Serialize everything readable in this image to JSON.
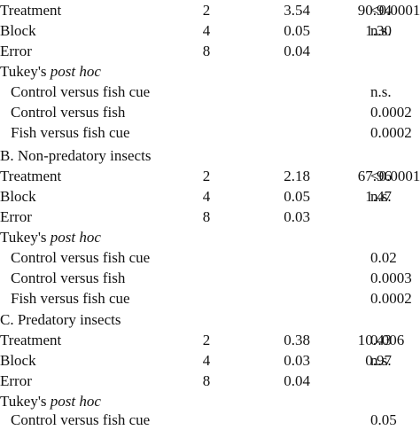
{
  "sections": [
    {
      "rows": [
        {
          "label": "Treatment",
          "df": "2",
          "ms": "3.54",
          "f": "90.94",
          "p": "<0.0001"
        },
        {
          "label": "Block",
          "df": "4",
          "ms": "0.05",
          "f": "1.30",
          "p": "n.s."
        },
        {
          "label": "Error",
          "df": "8",
          "ms": "0.04",
          "f": "",
          "p": ""
        }
      ],
      "posthoc_label": "Tukey's ",
      "posthoc_italic": "post hoc",
      "comparisons": [
        {
          "label": "Control versus fish cue",
          "p": "n.s."
        },
        {
          "label": "Control versus fish",
          "p": "0.0002"
        },
        {
          "label": "Fish versus fish cue",
          "p": "0.0002"
        }
      ]
    },
    {
      "heading": "B. Non-predatory insects",
      "rows": [
        {
          "label": "Treatment",
          "df": "2",
          "ms": "2.18",
          "f": "67.96",
          "p": "<0.0001"
        },
        {
          "label": "Block",
          "df": "4",
          "ms": "0.05",
          "f": "1.47",
          "p": "n.s."
        },
        {
          "label": "Error",
          "df": "8",
          "ms": "0.03",
          "f": "",
          "p": ""
        }
      ],
      "posthoc_label": "Tukey's ",
      "posthoc_italic": "post hoc",
      "comparisons": [
        {
          "label": "Control versus fish cue",
          "p": "0.02"
        },
        {
          "label": "Control versus fish",
          "p": "0.0003"
        },
        {
          "label": "Fish versus fish cue",
          "p": "0.0002"
        }
      ]
    },
    {
      "heading": "C. Predatory insects",
      "rows": [
        {
          "label": "Treatment",
          "df": "2",
          "ms": "0.38",
          "f": "10.43",
          "p": "0.006"
        },
        {
          "label": "Block",
          "df": "4",
          "ms": "0.03",
          "f": "0.97",
          "p": "n.s."
        },
        {
          "label": "Error",
          "df": "8",
          "ms": "0.04",
          "f": "",
          "p": ""
        }
      ],
      "posthoc_label": "Tukey's ",
      "posthoc_italic": "post hoc",
      "comparisons": [
        {
          "label": "Control versus fish cue",
          "p": "0.05"
        }
      ]
    }
  ]
}
